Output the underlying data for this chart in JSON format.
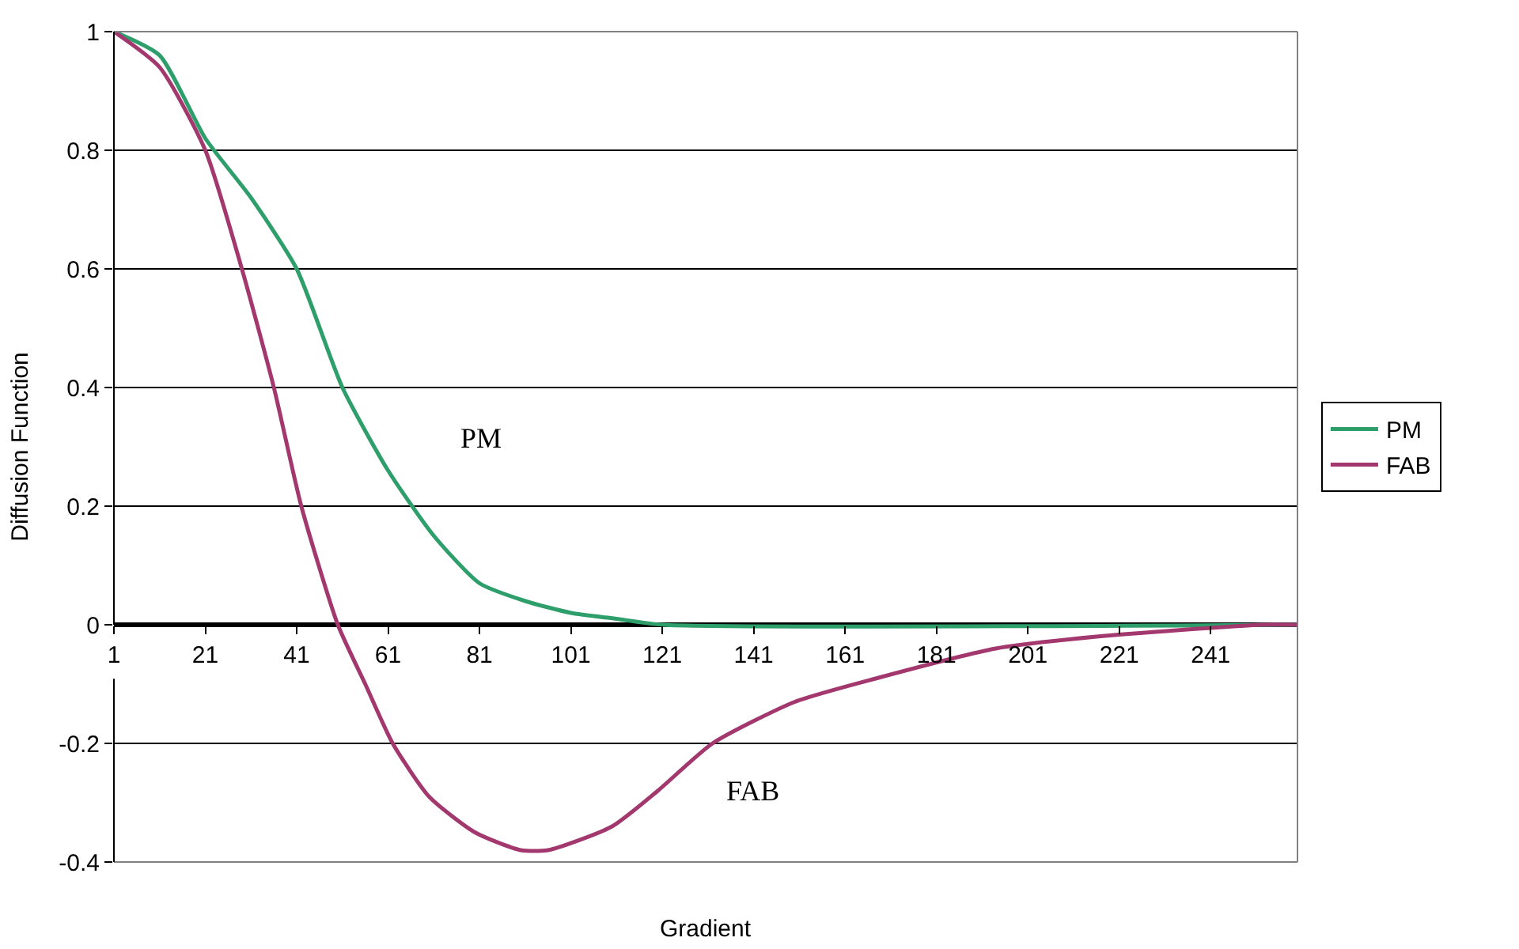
{
  "chart_data": {
    "type": "line",
    "xlabel": "Gradient",
    "ylabel": "Diffusion Function",
    "xlim": [
      1,
      260
    ],
    "xticks": [
      1,
      21,
      41,
      61,
      81,
      101,
      121,
      141,
      161,
      181,
      201,
      221,
      241
    ],
    "ylim": [
      -0.4,
      1
    ],
    "yticks": [
      -0.4,
      -0.2,
      0,
      0.2,
      0.4,
      0.6,
      0.8,
      1
    ],
    "grid": "y",
    "legend": "right",
    "marker": "none",
    "line_style": "solid",
    "series": [
      {
        "name": "PM",
        "color": "#2e9e6b",
        "x": [
          1,
          11,
          21,
          31,
          41,
          51,
          61,
          71,
          81,
          91,
          101,
          111,
          121,
          260
        ],
        "values": [
          1,
          0.96,
          0.82,
          0.72,
          0.6,
          0.4,
          0.26,
          0.15,
          0.07,
          0.04,
          0.02,
          0.01,
          0,
          0
        ]
      },
      {
        "name": "FAB",
        "color": "#a3386e",
        "x": [
          1,
          11,
          21,
          29,
          36,
          42,
          50,
          56,
          62,
          70,
          80,
          90,
          96,
          110,
          120,
          132,
          150,
          168,
          194,
          216,
          252,
          260
        ],
        "values": [
          1,
          0.94,
          0.8,
          0.6,
          0.4,
          0.2,
          0,
          -0.1,
          -0.2,
          -0.29,
          -0.35,
          -0.38,
          -0.38,
          -0.34,
          -0.28,
          -0.2,
          -0.13,
          -0.09,
          -0.04,
          -0.02,
          0,
          0
        ]
      }
    ],
    "annotations": [
      "PM",
      "FAB"
    ]
  }
}
